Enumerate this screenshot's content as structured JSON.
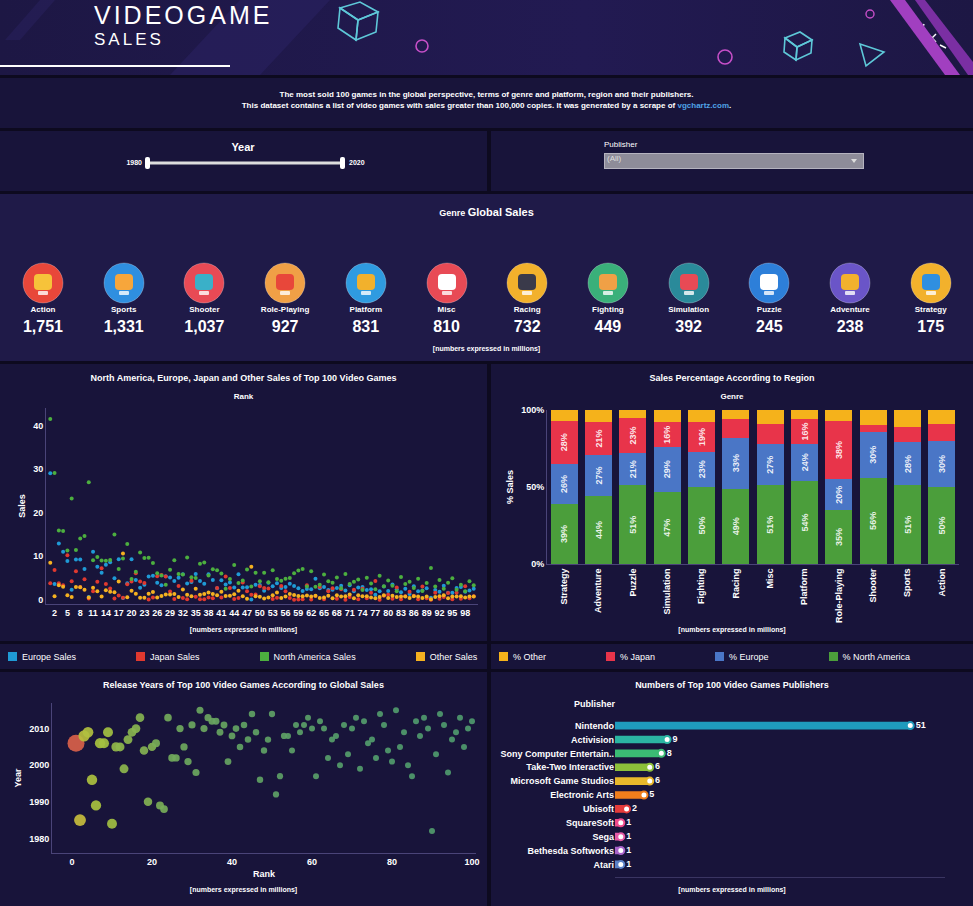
{
  "header": {
    "title": "VIDEOGAME",
    "subtitle": "SALES"
  },
  "description": {
    "lines": [
      [
        {
          "text": "The most sold 100 games in the global perspective, terms of genre and platform, region and their publishers."
        }
      ],
      [
        {
          "text": "This dataset contains a list of video games with sales greater than 100,000 copies. It was generated by a scrape of "
        },
        {
          "text": "vgchartz.com",
          "link": true
        },
        {
          "text": "."
        }
      ]
    ]
  },
  "filters": {
    "year": {
      "label": "Year",
      "min": 1980,
      "max": 2020
    },
    "publisher": {
      "label": "Publisher",
      "value": "(All)"
    }
  },
  "genre_sales": {
    "title_prefix": "Genre",
    "title": "Global Sales",
    "note": "[numbers expressed in millions]",
    "items": [
      {
        "label": "Action",
        "value": 1751,
        "value_label": "1,751"
      },
      {
        "label": "Sports",
        "value": 1331,
        "value_label": "1,331"
      },
      {
        "label": "Shooter",
        "value": 1037,
        "value_label": "1,037"
      },
      {
        "label": "Role-Playing",
        "value": 927
      },
      {
        "label": "Platform",
        "value": 831
      },
      {
        "label": "Misc",
        "value": 810
      },
      {
        "label": "Racing",
        "value": 732
      },
      {
        "label": "Fighting",
        "value": 449
      },
      {
        "label": "Simulation",
        "value": 392
      },
      {
        "label": "Puzzle",
        "value": 245
      },
      {
        "label": "Adventure",
        "value": 238
      },
      {
        "label": "Strategy",
        "value": 175
      }
    ]
  },
  "chart_data": [
    {
      "type": "scatter",
      "marker": "circle",
      "title": "North America, Europe, Japan and Other Sales of Top 100 Video Games",
      "x_label": "Rank",
      "y_label": "Sales",
      "note": "[numbers expressed in millions]",
      "legend": "bottom",
      "grid": false,
      "x": [
        1,
        2,
        3,
        4,
        5,
        6,
        7,
        8,
        9,
        10,
        11,
        12,
        13,
        14,
        15,
        16,
        17,
        18,
        19,
        20,
        21,
        22,
        23,
        24,
        25,
        26,
        27,
        28,
        29,
        30,
        31,
        32,
        33,
        34,
        35,
        36,
        37,
        38,
        39,
        40,
        41,
        42,
        43,
        44,
        45,
        46,
        47,
        48,
        49,
        50,
        51,
        52,
        53,
        54,
        55,
        56,
        57,
        58,
        59,
        60,
        61,
        62,
        63,
        64,
        65,
        66,
        67,
        68,
        69,
        70,
        71,
        72,
        73,
        74,
        75,
        76,
        77,
        78,
        79,
        80,
        81,
        82,
        83,
        84,
        85,
        86,
        87,
        88,
        89,
        90,
        91,
        92,
        93,
        94,
        95,
        96,
        97,
        98,
        99,
        100
      ],
      "series": [
        {
          "name": "Europe Sales",
          "color": "#1f9ad6",
          "values": [
            29.02,
            3.58,
            12.88,
            11.01,
            8.89,
            2.26,
            9.23,
            9.2,
            7.06,
            0.63,
            11,
            7.57,
            6.18,
            8.03,
            8.59,
            4.94,
            9.27,
            0.4,
            3.75,
            9.26,
            4.52,
            2.71,
            3.44,
            5.31,
            5.49,
            3.9,
            3.28,
            5.36,
            5.09,
            4.28,
            5.04,
            5.81,
            3.73,
            4.05,
            5.88,
            4.3,
            3.63,
            5.82,
            4.51,
            2.61,
            4.44,
            3.45,
            3.91,
            2.81,
            5.81,
            2.77,
            2.85,
            0.01,
            3.4,
            3.37,
            2.04,
            3.87,
            3.07,
            3.76,
            2.65,
            2.9,
            3.64,
            3.15,
            2.63,
            1.98,
            2.47,
            2.36,
            4.82,
            2.6,
            2.9,
            2.2,
            2.3,
            2.7,
            3.2,
            2.1,
            3.3,
            1.9,
            2.8,
            2.9,
            2.2,
            2.4,
            1.1,
            1.9,
            3,
            2,
            3.5,
            2.4,
            1.7,
            2.5,
            1.3,
            3.1,
            1.9,
            2.1,
            2.6,
            0.45,
            2.2,
            1.8,
            3.2,
            1.6,
            1.6,
            2.7,
            2.9,
            1.8,
            2.1,
            2.5
          ]
        },
        {
          "name": "Japan Sales",
          "color": "#e0392f",
          "values": [
            3.77,
            6.81,
            3.79,
            3.28,
            10.22,
            4.22,
            6.5,
            2.93,
            4.7,
            0.28,
            1.93,
            4.13,
            7.2,
            3.6,
            2.53,
            0.24,
            0.97,
            0.41,
            3.54,
            4.16,
            6.04,
            4.18,
            3.84,
            0.06,
            0.47,
            5.38,
            5.65,
            5.32,
            1.87,
            0.13,
            3.12,
            0.35,
            0.11,
            4.34,
            0.65,
            0.07,
            0.08,
            0.49,
            0.3,
            2.66,
            0.48,
            5.33,
            2.67,
            0.13,
            0.36,
            3.96,
            1.91,
            1.1,
            1.2,
            3.08,
            2.69,
            2.54,
            0.14,
            0.44,
            3.15,
            1.9,
            0.38,
            0,
            0.04,
            0.08,
            3.28,
            0.04,
            0.81,
            2.9,
            0.1,
            1.9,
            2.6,
            0.2,
            2.4,
            0,
            0.6,
            2.3,
            0.1,
            2.5,
            0.3,
            1.6,
            4.3,
            0,
            0.9,
            1.1,
            0.2,
            2.8,
            0.1,
            0.8,
            1.8,
            0.9,
            0.1,
            3,
            0.3,
            0,
            1.6,
            0.2,
            0.6,
            1.5,
            0.1,
            1.6,
            0.2,
            3.1,
            0.3,
            0.8
          ]
        },
        {
          "name": "North America Sales",
          "color": "#4caf3f",
          "values": [
            41.49,
            29.08,
            15.85,
            15.75,
            11.27,
            23.2,
            11.38,
            14.03,
            14.59,
            26.93,
            9.07,
            9.81,
            9,
            8.94,
            9.09,
            14.97,
            7.01,
            9.43,
            12.78,
            4.75,
            6.42,
            10.83,
            9.54,
            9.63,
            8.41,
            6.06,
            5.57,
            3.44,
            6.85,
            9.03,
            5.89,
            5.77,
            9.67,
            5.17,
            4.99,
            8.25,
            8.52,
            5.54,
            6.99,
            6.75,
            5.98,
            2.5,
            4.74,
            7.97,
            3.8,
            4.4,
            6.91,
            3.01,
            6.16,
            4.23,
            6.16,
            4.02,
            6.76,
            4.76,
            4.34,
            4.79,
            4.99,
            6.05,
            6.72,
            7.03,
            3.01,
            6.53,
            2.96,
            3.4,
            5.8,
            4.2,
            3.9,
            5.1,
            2.6,
            5.9,
            3.6,
            4.1,
            4.6,
            2.2,
            5,
            3.7,
            2.4,
            5.5,
            3.1,
            4.4,
            3.2,
            1.9,
            5.2,
            3.6,
            4.1,
            2.7,
            4.8,
            2,
            3.8,
            7.28,
            3,
            4.5,
            2.5,
            3.9,
            4.9,
            2.3,
            3.4,
            1.9,
            4.2,
            3.3
          ]
        },
        {
          "name": "Other Sales",
          "color": "#f5b120",
          "values": [
            8.46,
            0.77,
            3.31,
            2.96,
            1,
            0.58,
            2.9,
            2.85,
            2.26,
            0.47,
            2.75,
            1.92,
            0.71,
            2.15,
            1.79,
            1.67,
            4.14,
            10.57,
            0.55,
            2.05,
            1.37,
            0.42,
            0.46,
            1.38,
            1.78,
            0.5,
            0.82,
            1.18,
            1.16,
            1.32,
            0.59,
            2.31,
            1.13,
            0.79,
            2.52,
            1.12,
            1.29,
            1.62,
            1.3,
            1.02,
            1.83,
            0.86,
            0.89,
            1.21,
            2.02,
            0.77,
            0.23,
            7.53,
            0.76,
            0.65,
            0.29,
            0.52,
            1.03,
            1.62,
            0.35,
            0.75,
            1.3,
            1.07,
            0.82,
            0.78,
            0.96,
            0.73,
            0.9,
            0.4,
            0.5,
            0.9,
            0.3,
            1,
            0.7,
            0.8,
            1.2,
            0.3,
            1,
            0.8,
            0.8,
            0.5,
            0.3,
            0.6,
            1,
            0.4,
            0.9,
            0.6,
            0.7,
            0.7,
            0.4,
            0.8,
            0.7,
            0.4,
            0.7,
            0.08,
            0.6,
            0.8,
            1,
            0.3,
            0.7,
            0.7,
            0.8,
            0.5,
            0.7,
            0.7
          ]
        }
      ],
      "xlim": [
        0,
        101
      ],
      "xticks": [
        2,
        5,
        8,
        11,
        14,
        17,
        20,
        23,
        26,
        29,
        32,
        35,
        38,
        41,
        44,
        47,
        50,
        53,
        56,
        59,
        62,
        65,
        68,
        71,
        74,
        77,
        80,
        83,
        86,
        89,
        92,
        95,
        98
      ],
      "ylim": [
        -1,
        44
      ],
      "yticks": [
        0,
        10,
        20,
        30,
        40
      ]
    },
    {
      "type": "bar",
      "stacked": true,
      "data_labels": true,
      "legend": "bottom",
      "grid": false,
      "title": "Sales Percentage According to Region",
      "x_label": "Genre",
      "y_label": "% Sales",
      "note": "[numbers expressed in millions]",
      "categories": [
        "Strategy",
        "Adventure",
        "Puzzle",
        "Simulation",
        "Fighting",
        "Racing",
        "Misc",
        "Platform",
        "Role-Playing",
        "Shooter",
        "Sports",
        "Action"
      ],
      "series": [
        {
          "name": "% Other",
          "color": "#f5b21b",
          "values": [
            7,
            8,
            5,
            8,
            8,
            6,
            9,
            6,
            7,
            10,
            11,
            9
          ]
        },
        {
          "name": "% Japan",
          "color": "#e8344a",
          "values": [
            28,
            21,
            23,
            16,
            19,
            12,
            13,
            16,
            38,
            4,
            10,
            11
          ],
          "value_labels": [
            "28%",
            "21%",
            "23%",
            "16%",
            "19%",
            null,
            null,
            "16%",
            "38%",
            null,
            null,
            null
          ]
        },
        {
          "name": "% Europe",
          "color": "#4a76c6",
          "values": [
            26,
            27,
            21,
            29,
            23,
            33,
            27,
            24,
            20,
            30,
            28,
            30
          ],
          "value_labels": [
            "26%",
            "27%",
            "21%",
            "29%",
            "23%",
            "33%",
            "27%",
            "24%",
            "20%",
            "30%",
            "28%",
            "30%"
          ]
        },
        {
          "name": "% North America",
          "color": "#4b9e3b",
          "values": [
            39,
            44,
            51,
            47,
            50,
            49,
            51,
            54,
            35,
            56,
            51,
            50
          ],
          "value_labels": [
            "39%",
            "44%",
            "51%",
            "47%",
            "50%",
            "49%",
            "51%",
            "54%",
            "35%",
            "56%",
            "51%",
            "50%"
          ]
        }
      ],
      "ylim": [
        0,
        100
      ],
      "yticks": [
        {
          "value": 0,
          "label": "0%"
        },
        {
          "value": 50,
          "label": "50%"
        },
        {
          "value": 100,
          "label": "100%"
        }
      ]
    },
    {
      "type": "scatter",
      "marker": "bubble",
      "grid": false,
      "title": "Release Years of Top 100 Video Games According to Global Sales",
      "x_label": "Rank",
      "y_label": "Year",
      "note": "[numbers expressed in millions]",
      "x": [
        1,
        2,
        3,
        4,
        5,
        6,
        7,
        8,
        9,
        10,
        11,
        12,
        13,
        14,
        15,
        16,
        17,
        18,
        19,
        20,
        21,
        22,
        23,
        24,
        25,
        26,
        27,
        28,
        29,
        30,
        31,
        32,
        33,
        34,
        35,
        36,
        37,
        38,
        39,
        40,
        41,
        42,
        43,
        44,
        45,
        46,
        47,
        48,
        49,
        50,
        51,
        52,
        53,
        54,
        55,
        56,
        57,
        58,
        59,
        60,
        61,
        62,
        63,
        64,
        65,
        66,
        67,
        68,
        69,
        70,
        71,
        72,
        73,
        74,
        75,
        76,
        77,
        78,
        79,
        80,
        81,
        82,
        83,
        84,
        85,
        86,
        87,
        88,
        89,
        90,
        91,
        92,
        93,
        94,
        95,
        96,
        97,
        98,
        99,
        100
      ],
      "values": [
        2006,
        1985,
        2008,
        2009,
        1996,
        1989,
        2006,
        2006,
        2009,
        1984,
        2005,
        2005,
        1999,
        2007,
        2009,
        2010,
        2013,
        2004,
        1990,
        2005,
        2006,
        1989,
        1988,
        2013,
        2002,
        2002,
        2010,
        2005,
        2001,
        2011,
        1998,
        2015,
        2010,
        2013,
        2012,
        2012,
        2009,
        2011,
        2001,
        2008,
        2010,
        2005,
        2011,
        2007,
        2014,
        2009,
        1996,
        2004,
        2007,
        2014,
        1992,
        1997,
        2008,
        2008,
        2004,
        2011,
        2009,
        2011,
        2013,
        2010,
        1997,
        2012,
        2010,
        2002,
        2007,
        2008,
        2000,
        2011,
        2003,
        2010,
        2013,
        1999,
        2012,
        2006,
        2007,
        2002,
        2014,
        2011,
        2004,
        2001,
        2015,
        2005,
        2009,
        2000,
        1997,
        2012,
        2008,
        2013,
        2010,
        1982,
        2003,
        2014,
        2011,
        1998,
        2007,
        2009,
        2013,
        2005,
        2010,
        2012
      ],
      "sizes": [
        82.74,
        40.24,
        35.82,
        33,
        31.37,
        30.26,
        30.01,
        29.02,
        28.62,
        28.31,
        24.76,
        23.42,
        23.1,
        22.72,
        22,
        21.82,
        21.4,
        20.81,
        20.61,
        20.22,
        18.36,
        18.14,
        17.28,
        16.38,
        16.15,
        15.85,
        15.32,
        15.3,
        14.98,
        14.76,
        14.64,
        14.24,
        14.64,
        14.35,
        14.04,
        13.74,
        13.52,
        13.47,
        13.1,
        13.04,
        12.73,
        12.14,
        12.21,
        12.12,
        11.99,
        11.9,
        11.9,
        11.65,
        11.52,
        11.33,
        11.18,
        10.95,
        11,
        10.58,
        10.49,
        10.34,
        10.31,
        10.27,
        10.21,
        9.87,
        9.72,
        9.66,
        9.49,
        9.3,
        9.3,
        9.2,
        9.1,
        9,
        8.9,
        8.8,
        8.7,
        8.6,
        8.5,
        8.4,
        8.3,
        8.2,
        8.1,
        8,
        8,
        7.9,
        7.8,
        7.7,
        7.7,
        7.6,
        7.6,
        7.5,
        7.5,
        7.5,
        7.4,
        7.81,
        7.4,
        7.3,
        7.3,
        7.3,
        7.3,
        7.3,
        7.3,
        7.3,
        7.3,
        7.3
      ],
      "xlim": [
        -5,
        101
      ],
      "xticks": [
        0,
        20,
        40,
        60,
        80,
        100
      ],
      "ylim": [
        1976,
        2017
      ],
      "yticks": [
        1980,
        1990,
        2000,
        2010
      ]
    },
    {
      "type": "bar",
      "orientation": "horizontal",
      "data_labels": true,
      "tick_labels": "y",
      "grid": false,
      "title": "Numbers of Top 100 Video Games Publishers",
      "y_label": "Publisher",
      "note": "[numbers expressed in millions]",
      "categories": [
        "Nintendo",
        "Activision",
        "Sony Computer Entertain..",
        "Take-Two Interactive",
        "Microsoft Game Studios",
        "Electronic Arts",
        "Ubisoft",
        "SquareSoft",
        "Sega",
        "Bethesda Softworks",
        "Atari"
      ],
      "values": [
        51,
        9,
        8,
        6,
        6,
        5,
        2,
        1,
        1,
        1,
        1
      ],
      "colors": [
        "#1f9bbd",
        "#2bb5a3",
        "#3bbb74",
        "#8dbf3a",
        "#e8b82b",
        "#f07d1c",
        "#e43b3b",
        "#ee4b8c",
        "#e45aa6",
        "#a863c9",
        "#5a80c8"
      ],
      "xlim": [
        0,
        57
      ]
    }
  ]
}
